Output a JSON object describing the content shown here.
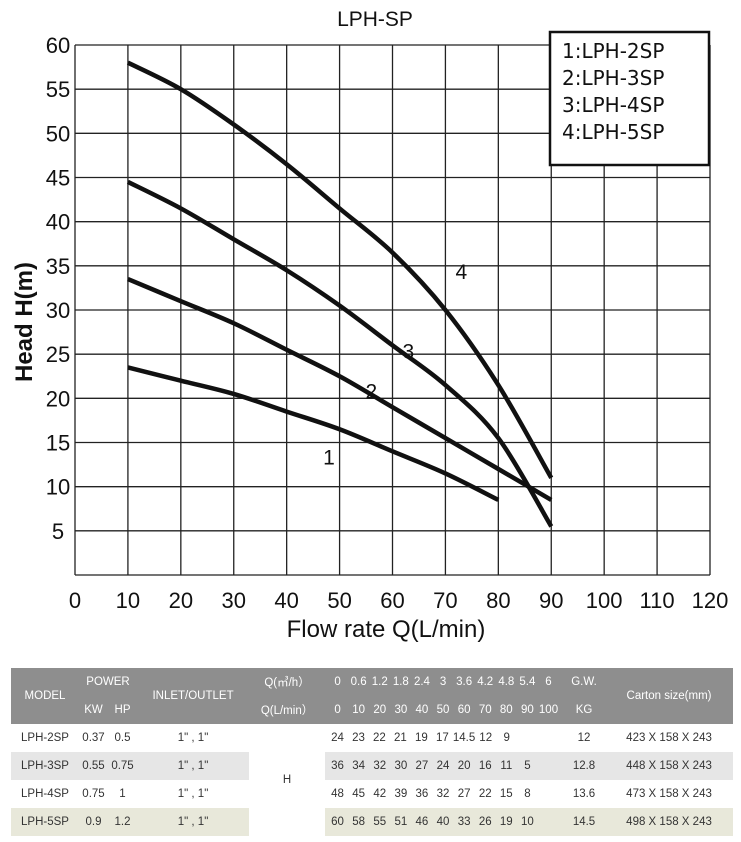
{
  "chart_data": {
    "type": "line",
    "title": "LPH-SP",
    "xlabel": "Flow rate Q(L/min)",
    "ylabel": "Head H(m)",
    "xlim": [
      0,
      120
    ],
    "ylim": [
      0,
      60
    ],
    "x_ticks": [
      "0",
      "10",
      "20",
      "30",
      "40",
      "50",
      "60",
      "70",
      "80",
      "90",
      "100",
      "110",
      "120"
    ],
    "y_ticks": [
      "5",
      "10",
      "15",
      "20",
      "25",
      "30",
      "35",
      "40",
      "45",
      "50",
      "55",
      "60"
    ],
    "grid": true,
    "legend_position": "top-right",
    "legend": [
      "1:LPH-2SP",
      "2:LPH-3SP",
      "3:LPH-4SP",
      "4:LPH-5SP"
    ],
    "series": [
      {
        "label": "1",
        "x": [
          10,
          20,
          30,
          40,
          50,
          60,
          70,
          80
        ],
        "y": [
          23.5,
          22,
          20.5,
          18.5,
          16.5,
          14,
          11.5,
          8.5
        ]
      },
      {
        "label": "2",
        "x": [
          10,
          20,
          30,
          40,
          50,
          60,
          70,
          80,
          90
        ],
        "y": [
          33.5,
          31,
          28.5,
          25.5,
          22.5,
          19,
          15.5,
          12,
          8.5
        ]
      },
      {
        "label": "3",
        "x": [
          10,
          20,
          30,
          40,
          50,
          60,
          70,
          80,
          90
        ],
        "y": [
          44.5,
          41.5,
          38,
          34.5,
          30.5,
          26,
          21.5,
          15.5,
          5.5
        ]
      },
      {
        "label": "4",
        "x": [
          10,
          20,
          30,
          40,
          50,
          60,
          70,
          80,
          90
        ],
        "y": [
          58,
          55,
          51,
          46.5,
          41.5,
          36.5,
          30,
          21.5,
          11
        ]
      }
    ],
    "curve_label_positions": [
      [
        48,
        12.5
      ],
      [
        56,
        20
      ],
      [
        63,
        24.5
      ],
      [
        73,
        33.5
      ]
    ]
  },
  "table": {
    "model_header": "MODEL",
    "power_header": "POWER",
    "kw_header": "KW",
    "hp_header": "HP",
    "inlet_header": "INLET/OUTLET",
    "q_m3_header": "Q(㎥/h）",
    "q_lmin_header": "Q(L/min）",
    "q_m3_values": [
      "0",
      "0.6",
      "1.2",
      "1.8",
      "2.4",
      "3",
      "3.6",
      "4.2",
      "4.8",
      "5.4",
      "6"
    ],
    "q_lmin_values": [
      "0",
      "10",
      "20",
      "30",
      "40",
      "50",
      "60",
      "70",
      "80",
      "90",
      "100"
    ],
    "gw_header": "G.W.",
    "kg_header": "KG",
    "carton_header": "Carton size(mm)",
    "h_label": "H",
    "rows": [
      {
        "model": "LPH-2SP",
        "kw": "0.37",
        "hp": "0.5",
        "inlet": "1\" , 1\"",
        "heads": [
          "24",
          "23",
          "22",
          "21",
          "19",
          "17",
          "14.5",
          "12",
          "9",
          "",
          ""
        ],
        "gw": "12",
        "carton": "423 X 158 X 243"
      },
      {
        "model": "LPH-3SP",
        "kw": "0.55",
        "hp": "0.75",
        "inlet": "1\" , 1\"",
        "heads": [
          "36",
          "34",
          "32",
          "30",
          "27",
          "24",
          "20",
          "16",
          "11",
          "5",
          ""
        ],
        "gw": "12.8",
        "carton": "448 X 158 X 243"
      },
      {
        "model": "LPH-4SP",
        "kw": "0.75",
        "hp": "1",
        "inlet": "1\" , 1\"",
        "heads": [
          "48",
          "45",
          "42",
          "39",
          "36",
          "32",
          "27",
          "22",
          "15",
          "8",
          ""
        ],
        "gw": "13.6",
        "carton": "473 X 158 X 243"
      },
      {
        "model": "LPH-5SP",
        "kw": "0.9",
        "hp": "1.2",
        "inlet": "1\" , 1\"",
        "heads": [
          "60",
          "58",
          "55",
          "51",
          "46",
          "40",
          "33",
          "26",
          "19",
          "10",
          ""
        ],
        "gw": "14.5",
        "carton": "498 X 158 X 243"
      }
    ]
  }
}
